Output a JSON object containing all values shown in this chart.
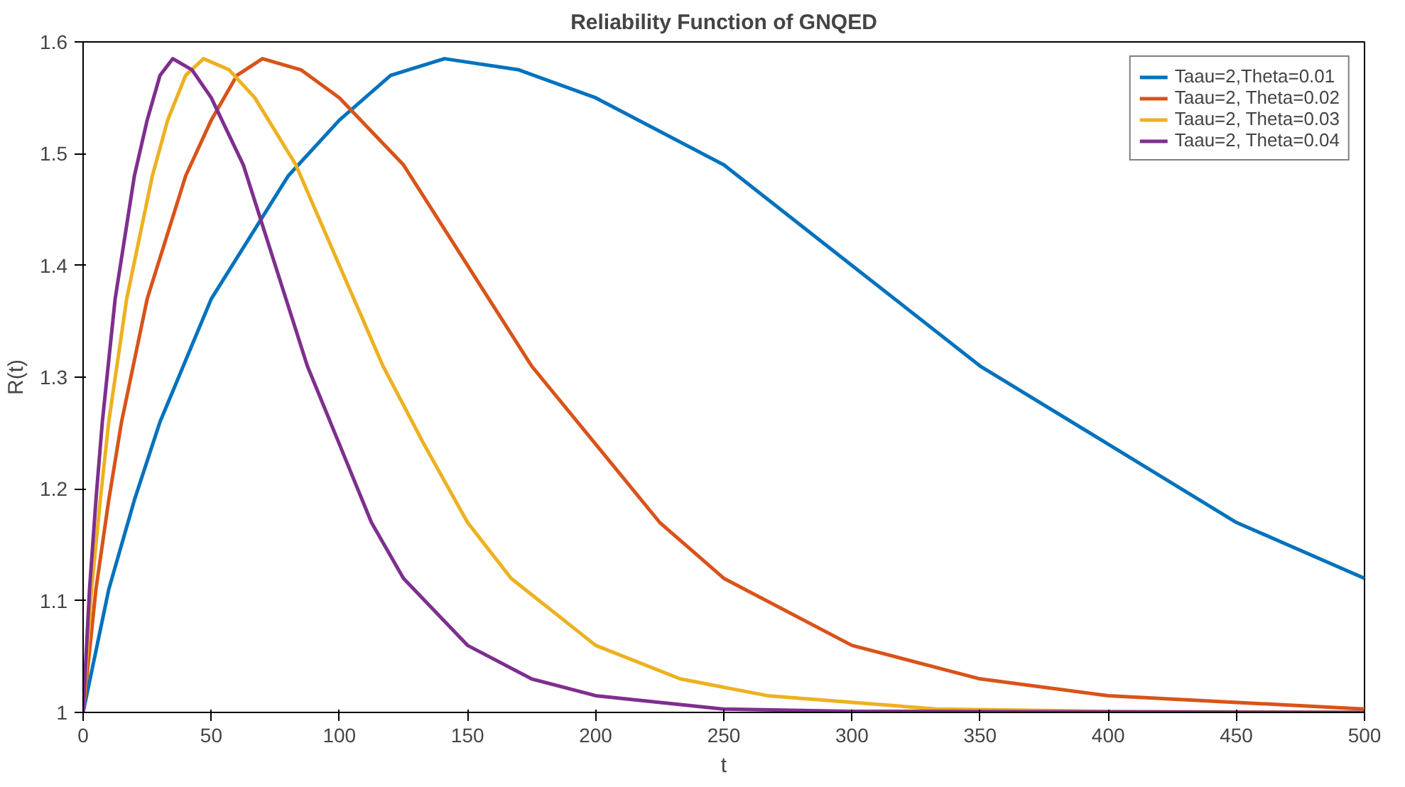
{
  "chart_data": {
    "type": "line",
    "title": "Reliability Function of GNQED",
    "xlabel": "t",
    "ylabel": "R(t)",
    "xlim": [
      0,
      500
    ],
    "ylim": [
      1,
      1.6
    ],
    "xticks": [
      0,
      50,
      100,
      150,
      200,
      250,
      300,
      350,
      400,
      450,
      500
    ],
    "yticks": [
      {
        "value": 1,
        "label": "1"
      },
      1.1,
      1.2,
      1.3,
      1.4,
      1.5,
      1.6
    ],
    "grid": false,
    "legend": "top right",
    "line_style": "solid",
    "marker": "none",
    "series": [
      {
        "name": "Taau=2,Theta=0.01",
        "color": "#0072bd",
        "x": [
          0,
          10,
          20,
          30,
          50,
          80,
          100,
          120,
          141,
          170,
          200,
          250,
          300,
          350,
          400,
          450,
          500
        ],
        "values": [
          1,
          1.11,
          1.19,
          1.26,
          1.37,
          1.48,
          1.53,
          1.57,
          1.585,
          1.575,
          1.55,
          1.49,
          1.4,
          1.31,
          1.24,
          1.17,
          1.12
        ]
      },
      {
        "name": "Taau=2, Theta=0.02",
        "color": "#d95319",
        "x": [
          0,
          5,
          10,
          15,
          25,
          40,
          50,
          60,
          70,
          85,
          100,
          125,
          150,
          175,
          200,
          225,
          250,
          300,
          350,
          400,
          500
        ],
        "values": [
          1,
          1.11,
          1.19,
          1.26,
          1.37,
          1.48,
          1.53,
          1.57,
          1.585,
          1.575,
          1.55,
          1.49,
          1.4,
          1.31,
          1.24,
          1.17,
          1.12,
          1.06,
          1.03,
          1.015,
          1.003
        ]
      },
      {
        "name": "Taau=2, Theta=0.03",
        "color": "#edb120",
        "x": [
          0,
          3.3,
          6.7,
          10,
          17,
          27,
          33,
          40,
          47,
          57,
          67,
          83,
          100,
          117,
          133,
          150,
          167,
          200,
          233,
          267,
          333,
          400,
          500
        ],
        "values": [
          1,
          1.11,
          1.19,
          1.26,
          1.37,
          1.48,
          1.53,
          1.57,
          1.585,
          1.575,
          1.55,
          1.49,
          1.4,
          1.31,
          1.24,
          1.17,
          1.12,
          1.06,
          1.03,
          1.015,
          1.003,
          1.001,
          1
        ]
      },
      {
        "name": "Taau=2, Theta=0.04",
        "color": "#7e2f8e",
        "x": [
          0,
          2.5,
          5,
          7.5,
          12.5,
          20,
          25,
          30,
          35,
          42.5,
          50,
          62.5,
          75,
          87.5,
          100,
          112.5,
          125,
          150,
          175,
          200,
          250,
          300,
          500
        ],
        "values": [
          1,
          1.11,
          1.19,
          1.26,
          1.37,
          1.48,
          1.53,
          1.57,
          1.585,
          1.575,
          1.55,
          1.49,
          1.4,
          1.31,
          1.24,
          1.17,
          1.12,
          1.06,
          1.03,
          1.015,
          1.003,
          1.001,
          1
        ]
      }
    ]
  }
}
